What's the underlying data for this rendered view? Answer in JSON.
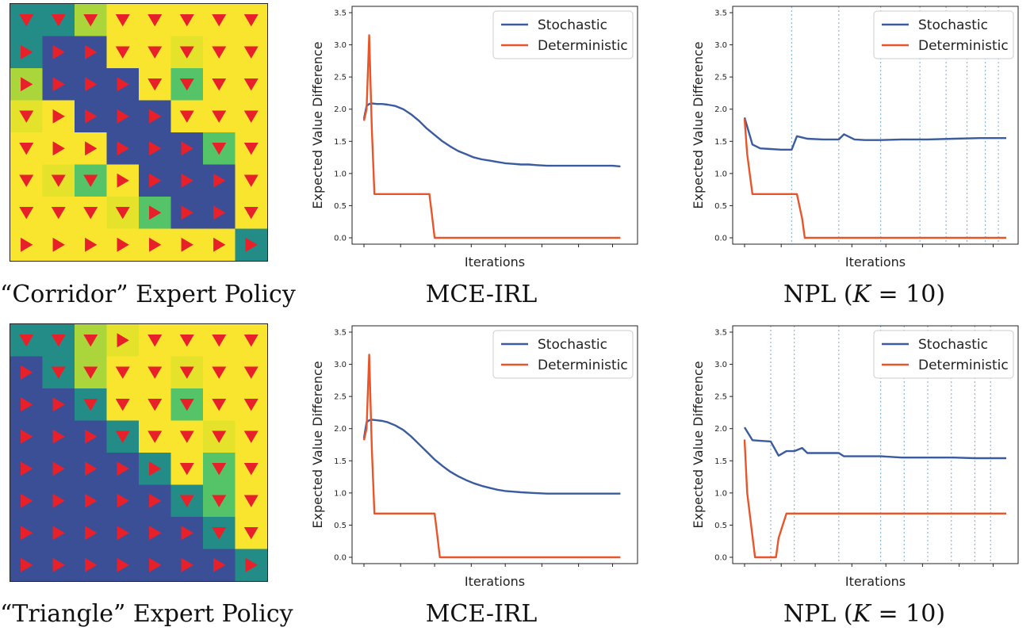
{
  "colors": {
    "stochastic": "#3a5ba0",
    "deterministic": "#e8552a",
    "grid_dark": "#3b4f96",
    "grid_teal": "#238c86",
    "grid_lime": "#abd63b",
    "grid_yellow": "#f9e52d",
    "grid_green": "#55c468",
    "grid_ltyel": "#e5e22c",
    "arrow": "#e8202a",
    "vline": "#8ab8d8"
  },
  "captions": {
    "corridor": "“Corridor” Expert Policy",
    "triangle": "“Triangle” Expert Policy",
    "mce_top": "MCE-IRL",
    "mce_bottom": "MCE-IRL",
    "npl_top_prefix": "NPL (",
    "npl_top_var": "K",
    "npl_top_suffix": " = 10)",
    "npl_bottom_prefix": "NPL (",
    "npl_bottom_var": "K",
    "npl_bottom_suffix": " = 10)"
  },
  "policy_grids": {
    "corridor": {
      "cells": [
        [
          "T",
          "T",
          "L",
          "Y",
          "Y",
          "Y",
          "Y",
          "Y"
        ],
        [
          "T",
          "D",
          "D",
          "Y",
          "Y",
          "E",
          "Y",
          "Y"
        ],
        [
          "L",
          "D",
          "D",
          "D",
          "Y",
          "G",
          "Y",
          "Y"
        ],
        [
          "E",
          "Y",
          "D",
          "D",
          "D",
          "Y",
          "Y",
          "Y"
        ],
        [
          "Y",
          "Y",
          "Y",
          "D",
          "D",
          "D",
          "G",
          "Y"
        ],
        [
          "Y",
          "E",
          "G",
          "Y",
          "D",
          "D",
          "D",
          "Y"
        ],
        [
          "Y",
          "Y",
          "Y",
          "E",
          "G",
          "D",
          "D",
          "Y"
        ],
        [
          "Y",
          "Y",
          "Y",
          "Y",
          "Y",
          "Y",
          "Y",
          "T"
        ]
      ],
      "arrows": [
        [
          "down",
          "down",
          "down",
          "down",
          "down",
          "down",
          "down",
          "down"
        ],
        [
          "right",
          "right",
          "right",
          "down",
          "down",
          "down",
          "down",
          "down"
        ],
        [
          "right",
          "right",
          "right",
          "right",
          "down",
          "down",
          "down",
          "down"
        ],
        [
          "down",
          "right",
          "right",
          "right",
          "right",
          "down",
          "down",
          "down"
        ],
        [
          "down",
          "right",
          "right",
          "right",
          "right",
          "right",
          "down",
          "down"
        ],
        [
          "down",
          "down",
          "down",
          "right",
          "right",
          "right",
          "right",
          "down"
        ],
        [
          "down",
          "down",
          "down",
          "down",
          "right",
          "right",
          "right",
          "down"
        ],
        [
          "right",
          "right",
          "right",
          "right",
          "right",
          "right",
          "right",
          "right"
        ]
      ]
    },
    "triangle": {
      "cells": [
        [
          "T",
          "T",
          "L",
          "E",
          "Y",
          "Y",
          "Y",
          "Y"
        ],
        [
          "D",
          "T",
          "L",
          "Y",
          "Y",
          "E",
          "Y",
          "Y"
        ],
        [
          "D",
          "D",
          "T",
          "Y",
          "Y",
          "G",
          "Y",
          "Y"
        ],
        [
          "D",
          "D",
          "D",
          "T",
          "Y",
          "Y",
          "E",
          "Y"
        ],
        [
          "D",
          "D",
          "D",
          "D",
          "T",
          "Y",
          "G",
          "Y"
        ],
        [
          "D",
          "D",
          "D",
          "D",
          "D",
          "T",
          "G",
          "Y"
        ],
        [
          "D",
          "D",
          "D",
          "D",
          "D",
          "D",
          "T",
          "Y"
        ],
        [
          "D",
          "D",
          "D",
          "D",
          "D",
          "D",
          "D",
          "T"
        ]
      ],
      "arrows": [
        [
          "down",
          "down",
          "down",
          "right",
          "down",
          "down",
          "down",
          "down"
        ],
        [
          "right",
          "down",
          "down",
          "down",
          "down",
          "down",
          "down",
          "down"
        ],
        [
          "right",
          "right",
          "down",
          "down",
          "down",
          "down",
          "down",
          "down"
        ],
        [
          "right",
          "right",
          "right",
          "down",
          "down",
          "down",
          "down",
          "down"
        ],
        [
          "right",
          "right",
          "right",
          "right",
          "right",
          "down",
          "down",
          "down"
        ],
        [
          "right",
          "right",
          "right",
          "right",
          "right",
          "down",
          "down",
          "down"
        ],
        [
          "right",
          "right",
          "right",
          "right",
          "right",
          "right",
          "down",
          "down"
        ],
        [
          "right",
          "right",
          "right",
          "right",
          "right",
          "right",
          "right",
          "right"
        ]
      ]
    }
  },
  "chart_data": [
    {
      "id": "mce_top",
      "type": "line",
      "title": "",
      "xlabel": "Iterations",
      "ylabel": "Expected Value Difference",
      "ylim": [
        0,
        3.5
      ],
      "yticks": [
        "0.0",
        "0.5",
        "1.0",
        "1.5",
        "2.0",
        "2.5",
        "3.0",
        "3.5"
      ],
      "xlim": [
        0,
        100
      ],
      "xticks": [
        0,
        14,
        27,
        41,
        54,
        68,
        82,
        95
      ],
      "vlines": [],
      "legend": [
        "Stochastic",
        "Deterministic"
      ],
      "series": [
        {
          "name": "Stochastic",
          "x": [
            0,
            1,
            2,
            3,
            5,
            7,
            9,
            12,
            15,
            18,
            21,
            24,
            27,
            30,
            33,
            36,
            39,
            42,
            45,
            48,
            51,
            54,
            57,
            60,
            63,
            66,
            70,
            75,
            80,
            85,
            90,
            95,
            98
          ],
          "y": [
            1.85,
            2.05,
            2.08,
            2.09,
            2.08,
            2.08,
            2.07,
            2.05,
            2.0,
            1.92,
            1.82,
            1.7,
            1.6,
            1.5,
            1.42,
            1.35,
            1.3,
            1.25,
            1.22,
            1.2,
            1.18,
            1.16,
            1.15,
            1.14,
            1.14,
            1.13,
            1.12,
            1.12,
            1.12,
            1.12,
            1.12,
            1.12,
            1.11
          ]
        },
        {
          "name": "Deterministic",
          "x": [
            0,
            1,
            2,
            3,
            4,
            25,
            26,
            27,
            98
          ],
          "y": [
            1.82,
            2.0,
            3.15,
            1.7,
            0.68,
            0.68,
            0.35,
            0.0,
            0.0
          ]
        }
      ]
    },
    {
      "id": "npl_top",
      "type": "line",
      "title": "",
      "xlabel": "Iterations",
      "ylabel": "Expected Value Difference",
      "ylim": [
        0,
        3.5
      ],
      "yticks": [
        "0.0",
        "0.5",
        "1.0",
        "1.5",
        "2.0",
        "2.5",
        "3.0",
        "3.5"
      ],
      "xlim": [
        0,
        100
      ],
      "xticks": [
        0,
        14,
        27,
        41,
        54,
        68,
        82,
        95
      ],
      "vlines": [
        18,
        36,
        52,
        67,
        77,
        85,
        92,
        97
      ],
      "legend": [
        "Stochastic",
        "Deterministic"
      ],
      "series": [
        {
          "name": "Stochastic",
          "x": [
            0,
            3,
            6,
            10,
            14,
            18,
            20,
            24,
            30,
            36,
            38,
            42,
            46,
            52,
            60,
            70,
            80,
            90,
            100
          ],
          "y": [
            1.87,
            1.45,
            1.39,
            1.38,
            1.37,
            1.37,
            1.58,
            1.54,
            1.53,
            1.53,
            1.61,
            1.53,
            1.52,
            1.52,
            1.53,
            1.53,
            1.54,
            1.55,
            1.55
          ]
        },
        {
          "name": "Deterministic",
          "x": [
            0,
            1,
            3,
            20,
            22,
            23,
            100
          ],
          "y": [
            1.85,
            1.3,
            0.68,
            0.68,
            0.3,
            0.0,
            0.0
          ]
        }
      ]
    },
    {
      "id": "mce_bottom",
      "type": "line",
      "title": "",
      "xlabel": "Iterations",
      "ylabel": "Expected Value Difference",
      "ylim": [
        0,
        3.5
      ],
      "yticks": [
        "0.0",
        "0.5",
        "1.0",
        "1.5",
        "2.0",
        "2.5",
        "3.0",
        "3.5"
      ],
      "xlim": [
        0,
        100
      ],
      "xticks": [
        0,
        14,
        27,
        41,
        54,
        68,
        82,
        95
      ],
      "vlines": [],
      "legend": [
        "Stochastic",
        "Deterministic"
      ],
      "series": [
        {
          "name": "Stochastic",
          "x": [
            0,
            1,
            2,
            3,
            5,
            7,
            9,
            12,
            15,
            18,
            21,
            24,
            27,
            30,
            33,
            36,
            39,
            42,
            45,
            48,
            51,
            54,
            57,
            60,
            65,
            70,
            75,
            80,
            85,
            90,
            95,
            98
          ],
          "y": [
            1.85,
            2.1,
            2.13,
            2.14,
            2.13,
            2.12,
            2.1,
            2.05,
            1.98,
            1.88,
            1.76,
            1.64,
            1.52,
            1.42,
            1.33,
            1.26,
            1.2,
            1.15,
            1.11,
            1.08,
            1.05,
            1.03,
            1.02,
            1.01,
            1.0,
            0.99,
            0.99,
            0.99,
            0.99,
            0.99,
            0.99,
            0.99
          ]
        },
        {
          "name": "Deterministic",
          "x": [
            0,
            1,
            2,
            3,
            4,
            27,
            28,
            29,
            98
          ],
          "y": [
            1.82,
            2.0,
            3.15,
            1.7,
            0.68,
            0.68,
            0.35,
            0.0,
            0.0
          ]
        }
      ]
    },
    {
      "id": "npl_bottom",
      "type": "line",
      "title": "",
      "xlabel": "Iterations",
      "ylabel": "Expected Value Difference",
      "ylim": [
        0,
        3.5
      ],
      "yticks": [
        "0.0",
        "0.5",
        "1.0",
        "1.5",
        "2.0",
        "2.5",
        "3.0",
        "3.5"
      ],
      "xlim": [
        0,
        100
      ],
      "xticks": [
        0,
        14,
        27,
        41,
        54,
        68,
        82,
        95
      ],
      "vlines": [
        10,
        19,
        36,
        52,
        61,
        70,
        79,
        88,
        94
      ],
      "legend": [
        "Stochastic",
        "Deterministic"
      ],
      "series": [
        {
          "name": "Stochastic",
          "x": [
            0,
            3,
            6,
            10,
            13,
            16,
            19,
            22,
            24,
            26,
            30,
            36,
            38,
            44,
            52,
            60,
            70,
            80,
            88,
            94,
            100
          ],
          "y": [
            2.02,
            1.82,
            1.81,
            1.8,
            1.58,
            1.65,
            1.65,
            1.7,
            1.62,
            1.62,
            1.62,
            1.62,
            1.57,
            1.57,
            1.57,
            1.55,
            1.55,
            1.55,
            1.54,
            1.54,
            1.54
          ]
        },
        {
          "name": "Deterministic",
          "x": [
            0,
            1,
            4,
            12,
            13,
            16,
            100
          ],
          "y": [
            1.83,
            1.0,
            0.0,
            0.0,
            0.3,
            0.68,
            0.68
          ]
        }
      ]
    }
  ]
}
